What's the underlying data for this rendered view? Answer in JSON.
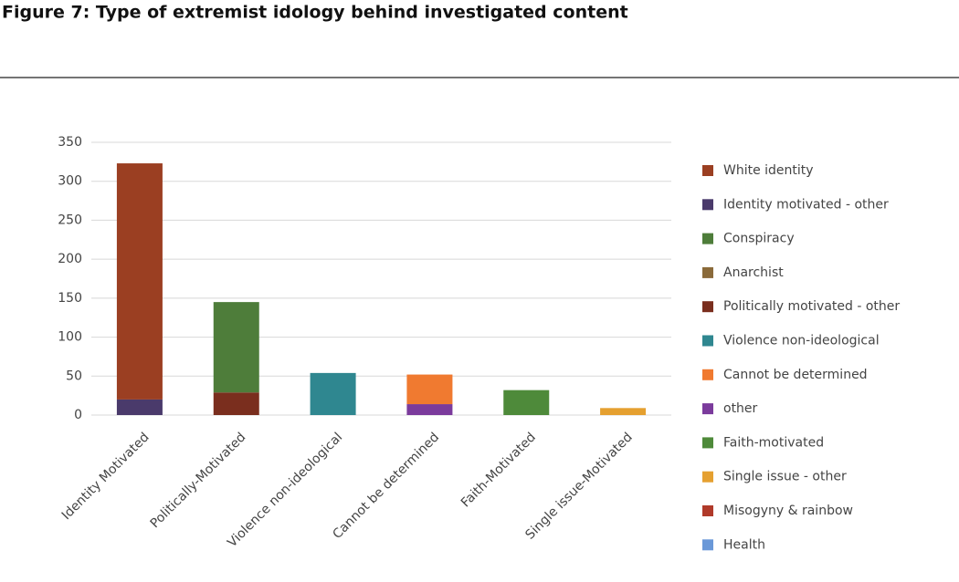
{
  "chart_data": {
    "type": "stacked-bar",
    "title": "Figure 7: Type of extremist idology behind investigated content",
    "categories": [
      "Identity Motivated",
      "Politically-Motivated",
      "Violence non-ideological",
      "Cannot be determined",
      "Faith-Motivated",
      "Single issue-Motivated"
    ],
    "series": [
      {
        "name": "White identity",
        "color": "#9b3f22",
        "values": [
          303,
          0,
          0,
          0,
          0,
          0
        ]
      },
      {
        "name": "Identity motivated - other",
        "color": "#4a3a6b",
        "values": [
          20,
          0,
          0,
          0,
          0,
          0
        ]
      },
      {
        "name": "Conspiracy",
        "color": "#4e7d3a",
        "values": [
          0,
          116,
          0,
          0,
          0,
          0
        ]
      },
      {
        "name": "Anarchist",
        "color": "#8a6a3a",
        "values": [
          0,
          0,
          0,
          0,
          0,
          0
        ]
      },
      {
        "name": "Politically motivated - other",
        "color": "#7a2e1e",
        "values": [
          0,
          29,
          0,
          0,
          0,
          0
        ]
      },
      {
        "name": "Violence non-ideological",
        "color": "#2f8790",
        "values": [
          0,
          0,
          54,
          0,
          0,
          0
        ]
      },
      {
        "name": "Cannot be determined",
        "color": "#f07a30",
        "values": [
          0,
          0,
          0,
          38,
          0,
          0
        ]
      },
      {
        "name": "other",
        "color": "#7b3b9c",
        "values": [
          0,
          0,
          0,
          14,
          0,
          0
        ]
      },
      {
        "name": "Faith-motivated",
        "color": "#4e8a3a",
        "values": [
          0,
          0,
          0,
          0,
          32,
          0
        ]
      },
      {
        "name": "Single issue - other",
        "color": "#e5a030",
        "values": [
          0,
          0,
          0,
          0,
          0,
          9
        ]
      },
      {
        "name": "Misogyny & rainbow",
        "color": "#b03a2a",
        "values": [
          0,
          0,
          0,
          0,
          0,
          0
        ]
      },
      {
        "name": "Health",
        "color": "#6a98d8",
        "values": [
          0,
          0,
          0,
          0,
          0,
          0
        ]
      }
    ],
    "ylim": [
      0,
      350
    ],
    "yticks": [
      0,
      50,
      100,
      150,
      200,
      250,
      300,
      350
    ],
    "grid": true,
    "legend": "right"
  }
}
